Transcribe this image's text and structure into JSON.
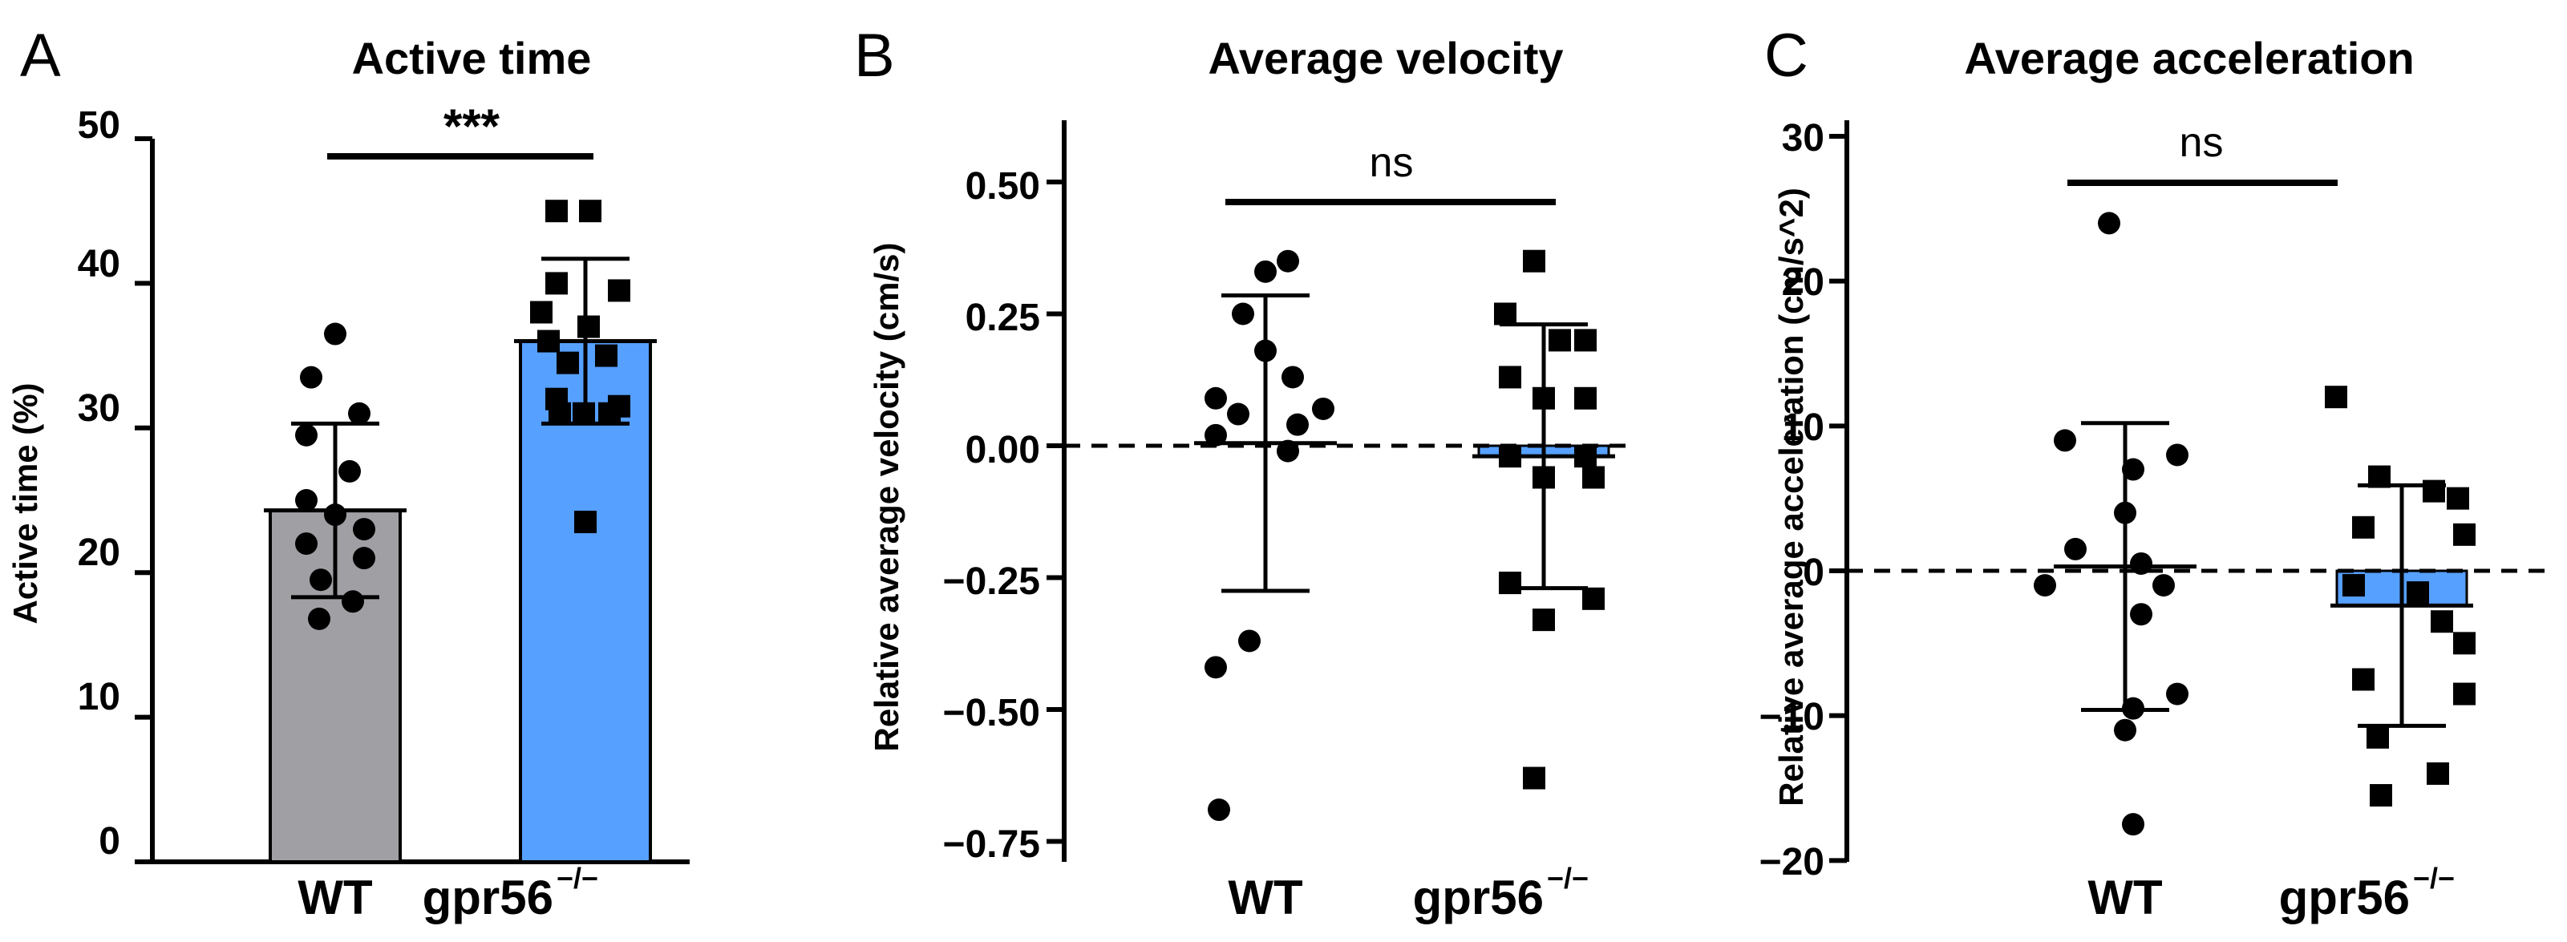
{
  "chart_data": [
    {
      "panel": "A",
      "type": "bar",
      "title": "Active time",
      "ylabel": "Active time (%)",
      "ylim": [
        0,
        50
      ],
      "yticks": [
        "0",
        "10",
        "20",
        "30",
        "40",
        "50"
      ],
      "categories": [
        {
          "label": "WT",
          "sup": ""
        },
        {
          "label": "gpr56",
          "sup": "−/−"
        }
      ],
      "groups": [
        {
          "name": "WT",
          "mean": 24.3,
          "sd": 6.0,
          "color": "#a0a0a4",
          "marker": "circle",
          "points": [
            36.5,
            33.5,
            31.0,
            29.5,
            27.0,
            25.0,
            24.0,
            23.0,
            22.0,
            21.0,
            19.5,
            18.0,
            16.8
          ]
        },
        {
          "name": "gpr56-/-",
          "mean": 36.0,
          "sd": 5.7,
          "color": "#56a0ff",
          "marker": "square",
          "points": [
            45.0,
            45.0,
            40.0,
            39.5,
            38.0,
            37.0,
            36.0,
            35.0,
            34.5,
            32.0,
            31.5,
            31.0,
            31.0,
            31.0,
            23.5
          ]
        }
      ],
      "significance": "***"
    },
    {
      "panel": "B",
      "type": "scatter",
      "title": "Average velocity",
      "ylabel": "Relative average velocity (cm/s)",
      "ylim": [
        -0.75,
        0.6
      ],
      "yticks": [
        "0.50",
        "0.25",
        "0.00",
        "−0.25",
        "−0.50",
        "−0.75"
      ],
      "categories": [
        {
          "label": "WT",
          "sup": ""
        },
        {
          "label": "gpr56",
          "sup": "−/−"
        }
      ],
      "groups": [
        {
          "name": "WT",
          "mean": 0.005,
          "sd": 0.28,
          "color": "#56a0ff",
          "marker": "circle",
          "points": [
            0.35,
            0.33,
            0.25,
            0.18,
            0.13,
            0.09,
            0.07,
            0.06,
            0.04,
            0.02,
            -0.01,
            -0.37,
            -0.42,
            -0.69
          ]
        },
        {
          "name": "gpr56-/-",
          "mean": -0.02,
          "sd": 0.25,
          "color": "#56a0ff",
          "marker": "square",
          "points": [
            0.35,
            0.25,
            0.2,
            0.2,
            0.13,
            0.09,
            0.09,
            -0.02,
            -0.02,
            -0.06,
            -0.06,
            -0.26,
            -0.29,
            -0.33,
            -0.63
          ]
        }
      ],
      "significance": "ns"
    },
    {
      "panel": "C",
      "type": "scatter",
      "title": "Average acceleration",
      "ylabel": "Relative average acceleration (cm/s^2)",
      "ylim": [
        -20,
        30
      ],
      "yticks": [
        "30",
        "20",
        "10",
        "0",
        "−10",
        "−20"
      ],
      "categories": [
        {
          "label": "WT",
          "sup": ""
        },
        {
          "label": "gpr56",
          "sup": "−/−"
        }
      ],
      "groups": [
        {
          "name": "WT",
          "mean": 0.3,
          "sd": 9.9,
          "color": "#56a0ff",
          "marker": "circle",
          "points": [
            24.0,
            9.0,
            8.0,
            7.0,
            4.0,
            1.5,
            0.5,
            -1.0,
            -1.0,
            -3.0,
            -8.5,
            -9.5,
            -11.0,
            -17.5
          ]
        },
        {
          "name": "gpr56-/-",
          "mean": -2.4,
          "sd": 8.3,
          "color": "#56a0ff",
          "marker": "square",
          "points": [
            12.0,
            6.5,
            5.5,
            5.0,
            3.0,
            2.5,
            -1.0,
            -1.5,
            -3.5,
            -5.0,
            -7.5,
            -8.5,
            -11.5,
            -14.0,
            -15.5
          ]
        }
      ],
      "significance": "ns"
    }
  ]
}
